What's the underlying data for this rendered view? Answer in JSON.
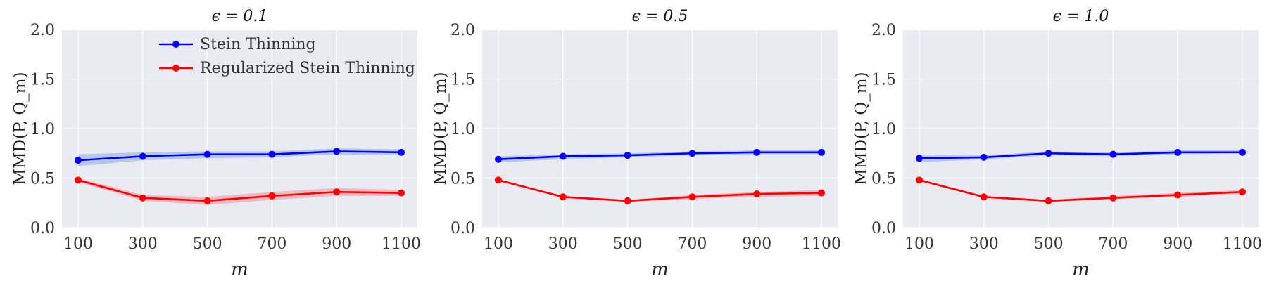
{
  "chart_data": [
    {
      "type": "line",
      "title": "ϵ = 0.1",
      "xlabel": "m",
      "ylabel": "MMD(P, Q_m)",
      "x": [
        100,
        300,
        500,
        700,
        900,
        1100
      ],
      "xticks": [
        "100",
        "300",
        "500",
        "700",
        "900",
        "1100"
      ],
      "yticks": [
        "0.0",
        "0.5",
        "1.0",
        "1.5",
        "2.0"
      ],
      "ylim": [
        0,
        2
      ],
      "grid": true,
      "legend": "top-right",
      "series": [
        {
          "name": "Stein Thinning",
          "color": "#0000ff",
          "band_color": "#aec2e4",
          "values": [
            0.68,
            0.72,
            0.74,
            0.74,
            0.77,
            0.76
          ],
          "lower": [
            0.62,
            0.68,
            0.7,
            0.71,
            0.74,
            0.73
          ],
          "upper": [
            0.74,
            0.76,
            0.77,
            0.77,
            0.8,
            0.79
          ]
        },
        {
          "name": "Regularized Stein Thinning",
          "color": "#ff0000",
          "band_color": "#eeb0bb",
          "values": [
            0.48,
            0.3,
            0.27,
            0.32,
            0.36,
            0.35
          ],
          "lower": [
            0.46,
            0.27,
            0.23,
            0.28,
            0.32,
            0.32
          ],
          "upper": [
            0.5,
            0.33,
            0.31,
            0.36,
            0.4,
            0.38
          ]
        }
      ]
    },
    {
      "type": "line",
      "title": "ϵ = 0.5",
      "xlabel": "m",
      "ylabel": "MMD(P, Q_m)",
      "x": [
        100,
        300,
        500,
        700,
        900,
        1100
      ],
      "xticks": [
        "100",
        "300",
        "500",
        "700",
        "900",
        "1100"
      ],
      "yticks": [
        "0.0",
        "0.5",
        "1.0",
        "1.5",
        "2.0"
      ],
      "ylim": [
        0,
        2
      ],
      "grid": true,
      "series": [
        {
          "name": "Stein Thinning",
          "color": "#0000ff",
          "band_color": "#aec2e4",
          "values": [
            0.69,
            0.72,
            0.73,
            0.75,
            0.76,
            0.76
          ],
          "lower": [
            0.66,
            0.69,
            0.71,
            0.73,
            0.74,
            0.74
          ],
          "upper": [
            0.72,
            0.74,
            0.75,
            0.77,
            0.78,
            0.78
          ]
        },
        {
          "name": "Regularized Stein Thinning",
          "color": "#ff0000",
          "band_color": "#eeb0bb",
          "values": [
            0.48,
            0.31,
            0.27,
            0.31,
            0.34,
            0.35
          ],
          "lower": [
            0.47,
            0.3,
            0.26,
            0.29,
            0.31,
            0.32
          ],
          "upper": [
            0.49,
            0.32,
            0.28,
            0.33,
            0.36,
            0.38
          ]
        }
      ]
    },
    {
      "type": "line",
      "title": "ϵ = 1.0",
      "xlabel": "m",
      "ylabel": "MMD(P, Q_m)",
      "x": [
        100,
        300,
        500,
        700,
        900,
        1100
      ],
      "xticks": [
        "100",
        "300",
        "500",
        "700",
        "900",
        "1100"
      ],
      "yticks": [
        "0.0",
        "0.5",
        "1.0",
        "1.5",
        "2.0"
      ],
      "ylim": [
        0,
        2
      ],
      "grid": true,
      "series": [
        {
          "name": "Stein Thinning",
          "color": "#0000ff",
          "band_color": "#aec2e4",
          "values": [
            0.7,
            0.71,
            0.75,
            0.74,
            0.76,
            0.76
          ],
          "lower": [
            0.66,
            0.69,
            0.73,
            0.72,
            0.74,
            0.75
          ],
          "upper": [
            0.73,
            0.73,
            0.77,
            0.76,
            0.78,
            0.78
          ]
        },
        {
          "name": "Regularized Stein Thinning",
          "color": "#ff0000",
          "band_color": "#eeb0bb",
          "values": [
            0.48,
            0.31,
            0.27,
            0.3,
            0.33,
            0.36
          ],
          "lower": [
            0.47,
            0.3,
            0.26,
            0.29,
            0.31,
            0.34
          ],
          "upper": [
            0.49,
            0.32,
            0.28,
            0.32,
            0.35,
            0.38
          ]
        }
      ]
    }
  ],
  "colors": {
    "plot_background": "#eaeaf2",
    "grid": "#ffffff"
  }
}
